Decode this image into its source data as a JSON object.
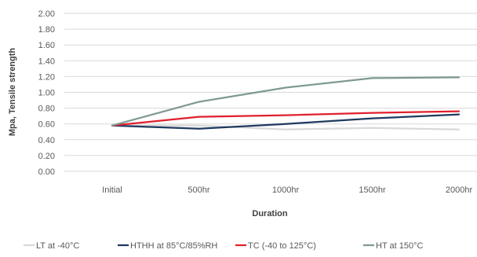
{
  "chart_data": {
    "type": "line",
    "title": "",
    "xlabel": "Duration",
    "ylabel": "Mpa, Tensile strength",
    "categories": [
      "Initial",
      "500hr",
      "1000hr",
      "1500hr",
      "2000hr"
    ],
    "ylim": [
      0,
      2
    ],
    "y_ticks": [
      "0.00",
      "0.20",
      "0.40",
      "0.60",
      "0.80",
      "1.00",
      "1.20",
      "1.40",
      "1.60",
      "1.80",
      "2.00"
    ],
    "grid": true,
    "legend_position": "bottom",
    "series": [
      {
        "name": "LT at -40°C",
        "color": "#d9d9d9",
        "values": [
          0.58,
          0.58,
          0.53,
          0.55,
          0.53
        ]
      },
      {
        "name": "HTHH at 85°C/85%RH",
        "color": "#1f3a5f",
        "values": [
          0.58,
          0.54,
          0.6,
          0.67,
          0.72
        ]
      },
      {
        "name": "TC (-40 to 125°C)",
        "color": "#e0202e",
        "values": [
          0.58,
          0.69,
          0.71,
          0.74,
          0.76
        ]
      },
      {
        "name": "HT at 150°C",
        "color": "#7f9a90",
        "values": [
          0.58,
          0.88,
          1.06,
          1.18,
          1.19
        ]
      }
    ]
  }
}
